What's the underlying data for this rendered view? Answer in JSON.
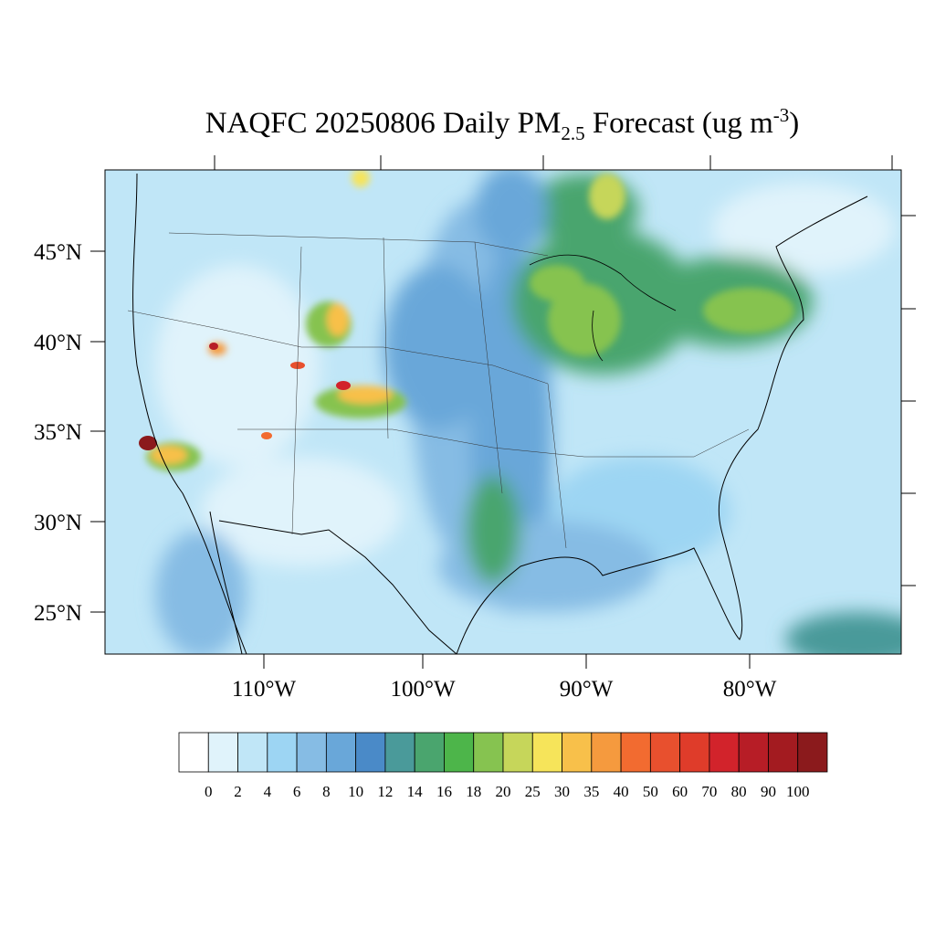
{
  "title": {
    "main": "NAQFC 20250806 Daily PM",
    "subscript": "2.5",
    "middle": " Forecast (ug m",
    "superscript": "-3",
    "end": ")"
  },
  "lat_labels": [
    "45°N",
    "40°N",
    "35°N",
    "30°N",
    "25°N"
  ],
  "lon_labels": [
    "110°W",
    "100°W",
    "90°W",
    "80°W"
  ],
  "colorbar": {
    "levels": [
      0,
      2,
      4,
      6,
      8,
      10,
      12,
      14,
      16,
      18,
      20,
      25,
      30,
      35,
      40,
      50,
      60,
      70,
      80,
      90,
      100
    ],
    "colors": [
      "#ffffff",
      "#e0f3fb",
      "#c0e6f7",
      "#9dd5f3",
      "#86bce4",
      "#69a7d9",
      "#4a8ac8",
      "#4a9a9a",
      "#4aa56e",
      "#4db54a",
      "#86c350",
      "#c6d65a",
      "#f6e45a",
      "#f8c04a",
      "#f59a3e",
      "#f26b30",
      "#e8502e",
      "#df3c2a",
      "#d2232b",
      "#b71d26",
      "#a31b20",
      "#8b1a1c"
    ]
  }
}
